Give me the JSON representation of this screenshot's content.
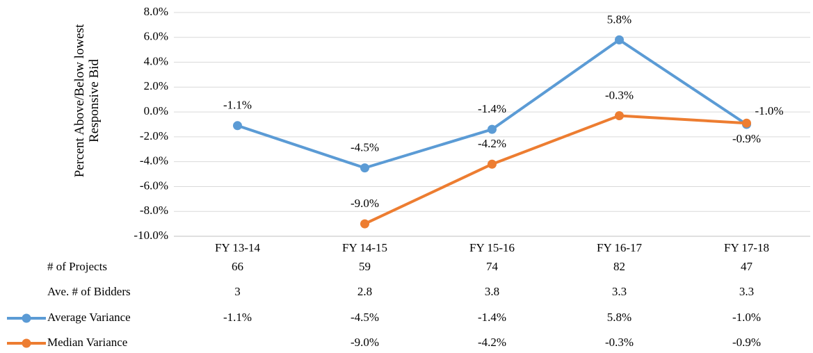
{
  "chart_data": {
    "type": "line",
    "y_label": "Percent Above/Below lowest Responsive Bid",
    "categories": [
      "FY 13-14",
      "FY 14-15",
      "FY 15-16",
      "FY 16-17",
      "FY 17-18"
    ],
    "series": [
      {
        "name": "Average Variance",
        "color": "#5b9bd5",
        "values": [
          -1.1,
          -4.5,
          -1.4,
          5.8,
          -1.0
        ],
        "value_labels": [
          "-1.1%",
          "-4.5%",
          "-1.4%",
          "5.8%",
          "-1.0%"
        ]
      },
      {
        "name": "Median Variance",
        "color": "#ed7d31",
        "values": [
          null,
          -9.0,
          -4.2,
          -0.3,
          -0.9
        ],
        "value_labels": [
          null,
          "-9.0%",
          "-4.2%",
          "-0.3%",
          "-0.9%"
        ]
      }
    ],
    "ylim": [
      -10,
      8
    ],
    "yticks": [
      {
        "value": -10,
        "label": "-10.0%"
      },
      {
        "value": -8,
        "label": "-8.0%"
      },
      {
        "value": -6,
        "label": "-6.0%"
      },
      {
        "value": -4,
        "label": "-4.0%"
      },
      {
        "value": -2,
        "label": "-2.0%"
      },
      {
        "value": 0,
        "label": "0.0%"
      },
      {
        "value": 2,
        "label": "2.0%"
      },
      {
        "value": 4,
        "label": "4.0%"
      },
      {
        "value": 6,
        "label": "6.0%"
      },
      {
        "value": 8,
        "label": "8.0%"
      }
    ],
    "grid": true,
    "table": {
      "rows": [
        {
          "label": "# of Projects",
          "values": [
            66,
            59,
            74,
            82,
            47
          ]
        },
        {
          "label": "Ave. # of Bidders",
          "values": [
            3,
            2.8,
            3.8,
            3.3,
            3.3
          ]
        }
      ]
    }
  }
}
